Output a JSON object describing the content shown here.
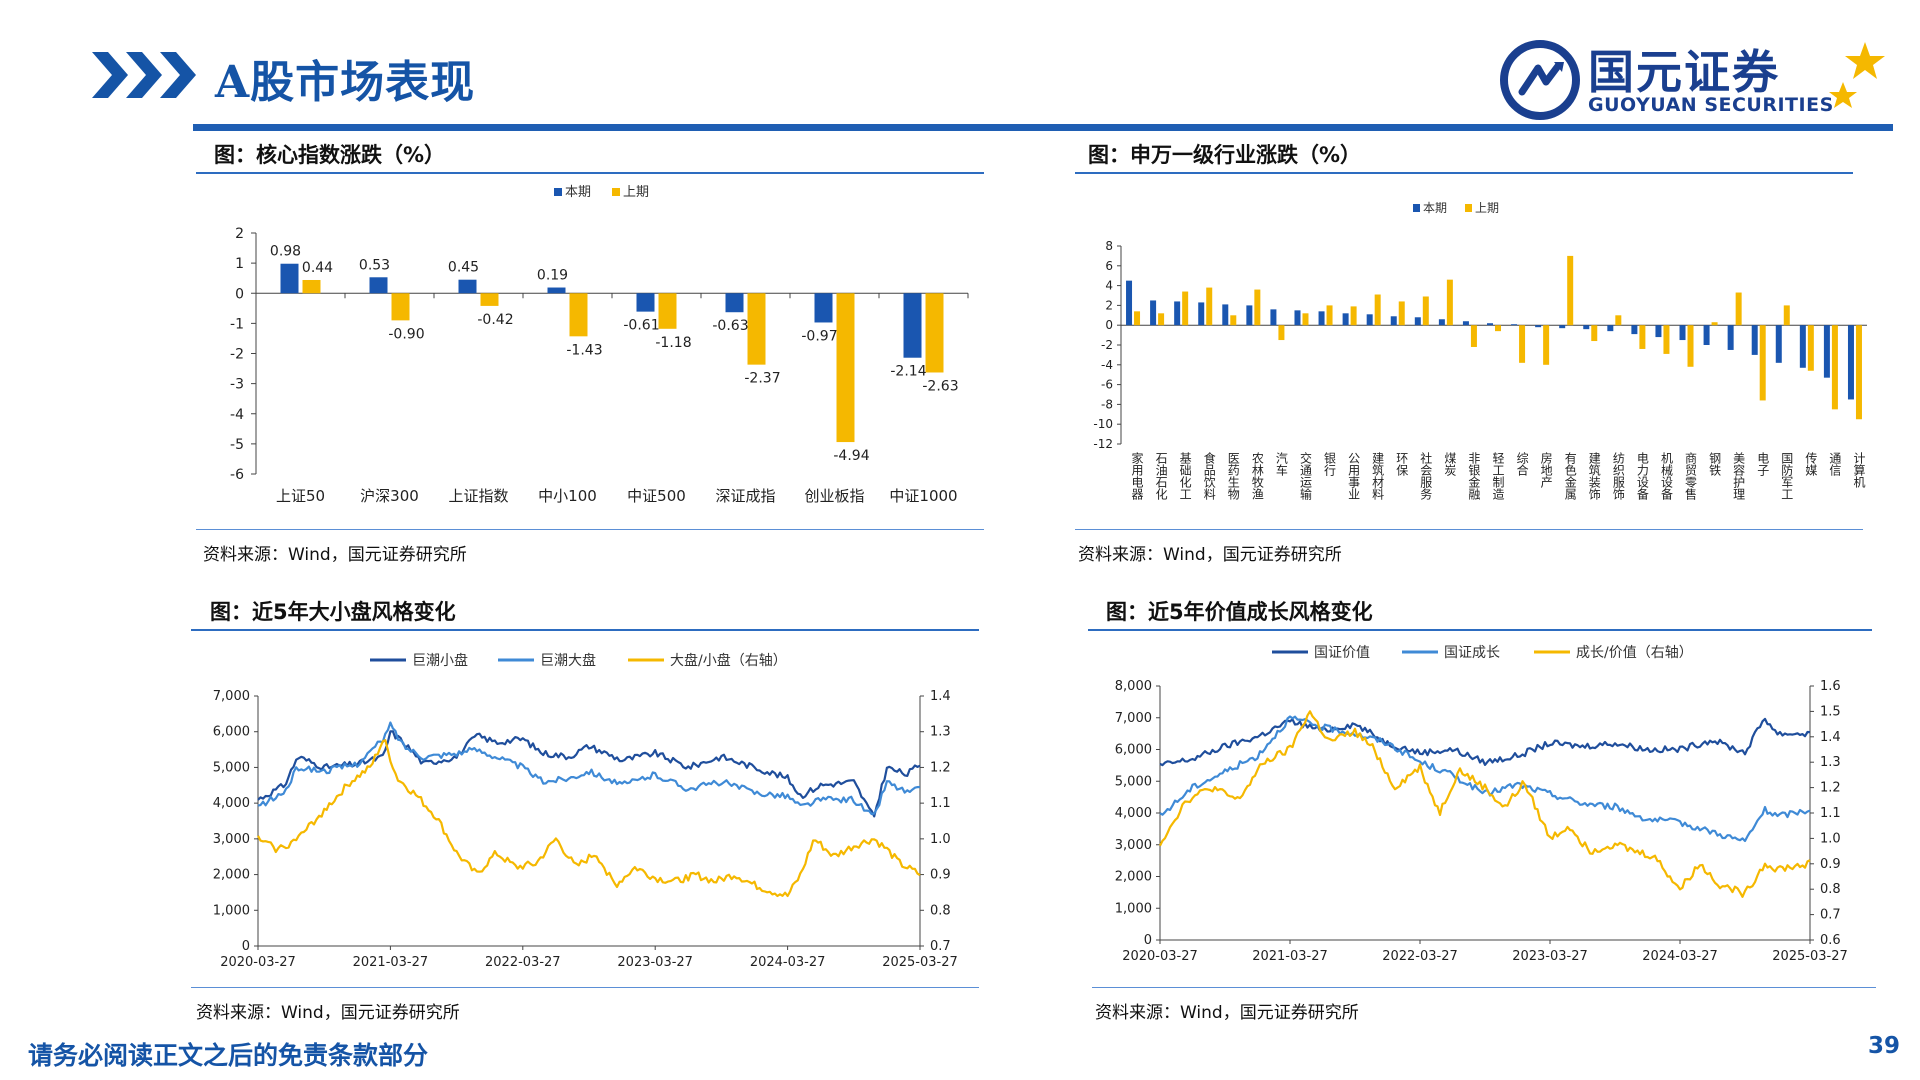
{
  "header": {
    "title": "A股市场表现",
    "logo_cn": "国元证券",
    "logo_en": "GUOYUAN SECURITIES",
    "accent": "#1f5eb3"
  },
  "panels": {
    "p1": {
      "title": "图：核心指数涨跌（%）",
      "source": "资料来源：Wind，国元证券研究所"
    },
    "p2": {
      "title": "图：申万一级行业涨跌（%）",
      "source": "资料来源：Wind，国元证券研究所"
    },
    "p3": {
      "title": "图：近5年大小盘风格变化",
      "source": "资料来源：Wind，国元证券研究所"
    },
    "p4": {
      "title": "图：近5年价值成长风格变化",
      "source": "资料来源：Wind，国元证券研究所"
    }
  },
  "footer": {
    "note": "请务必阅读正文之后的免责条款部分",
    "page": "39"
  },
  "colors": {
    "blue": "#1a56b0",
    "orange": "#f5b800",
    "dark_blue": "#1f4e9c",
    "mid_blue": "#3f8ad6"
  },
  "chart_data": [
    {
      "type": "bar",
      "id": "core-index",
      "categories": [
        "上证50",
        "沪深300",
        "上证指数",
        "中小100",
        "中证500",
        "深证成指",
        "创业板指",
        "中证1000"
      ],
      "series": [
        {
          "name": "本期",
          "values": [
            0.98,
            0.53,
            0.45,
            0.19,
            -0.61,
            -0.63,
            -0.97,
            -2.14
          ]
        },
        {
          "name": "上期",
          "values": [
            0.44,
            -0.9,
            -0.42,
            -1.43,
            -1.18,
            -2.37,
            -4.94,
            -2.63
          ]
        }
      ],
      "labels": [
        [
          "0.98",
          "0.53",
          "0.45",
          "0.19",
          "-0.61",
          "-0.63",
          "-0.97",
          "-2.14"
        ],
        [
          "0.44",
          "-0.90",
          "-0.42",
          "-1.43",
          "-1.18",
          "-2.37",
          "-4.94",
          "-2.63"
        ]
      ],
      "ylim": [
        -6,
        2
      ],
      "yticks": [
        "-6",
        "-5",
        "-4",
        "-3",
        "-2",
        "-1",
        "0",
        "1",
        "2"
      ],
      "legend": "top-center"
    },
    {
      "type": "bar",
      "id": "sw-industry",
      "categories": [
        "家用电器",
        "石油石化",
        "基础化工",
        "食品饮料",
        "医药生物",
        "农林牧渔",
        "汽车",
        "交通运输",
        "银行",
        "公用事业",
        "建筑材料",
        "环保",
        "社会服务",
        "煤炭",
        "非银金融",
        "轻工制造",
        "综合",
        "房地产",
        "有色金属",
        "建筑装饰",
        "纺织服饰",
        "电力设备",
        "机械设备",
        "商贸零售",
        "钢铁",
        "美容护理",
        "电子",
        "国防军工",
        "传媒",
        "通信",
        "计算机"
      ],
      "series": [
        {
          "name": "本期",
          "values": [
            4.5,
            2.5,
            2.4,
            2.3,
            2.1,
            2.0,
            1.6,
            1.5,
            1.4,
            1.2,
            1.1,
            0.9,
            0.8,
            0.6,
            0.4,
            0.2,
            0.1,
            -0.2,
            -0.3,
            -0.4,
            -0.6,
            -0.9,
            -1.2,
            -1.5,
            -2.0,
            -2.5,
            -3.0,
            -3.8,
            -4.3,
            -5.3,
            -7.5
          ]
        },
        {
          "name": "上期",
          "values": [
            1.4,
            1.2,
            3.4,
            3.8,
            1.0,
            3.6,
            -1.5,
            1.2,
            2.0,
            1.9,
            3.1,
            2.4,
            2.9,
            4.6,
            -2.2,
            -0.6,
            -3.8,
            -4.0,
            7.0,
            -1.6,
            1.0,
            -2.4,
            -2.9,
            -4.2,
            0.3,
            3.3,
            -7.6,
            2.0,
            -4.6,
            -8.5,
            -9.5
          ]
        }
      ],
      "ylim": [
        -12,
        8
      ],
      "yticks": [
        "-12",
        "-10",
        "-8",
        "-6",
        "-4",
        "-2",
        "0",
        "2",
        "4",
        "6",
        "8"
      ],
      "legend": "top-center"
    },
    {
      "type": "line",
      "id": "size-style",
      "x_range": [
        "2020-03-27",
        "2025-03-27"
      ],
      "x_ticks": [
        "2020-03-27",
        "2021-03-27",
        "2022-03-27",
        "2023-03-27",
        "2024-03-27",
        "2025-03-27"
      ],
      "y_left": [
        0,
        7000
      ],
      "y_left_ticks": [
        "0",
        "1,000",
        "2,000",
        "3,000",
        "4,000",
        "5,000",
        "6,000",
        "7,000"
      ],
      "y_right": [
        0.7,
        1.4
      ],
      "y_right_ticks": [
        "0.7",
        "0.8",
        "0.9",
        "1.0",
        "1.1",
        "1.2",
        "1.3",
        "1.4"
      ],
      "series": [
        {
          "name": "巨潮小盘",
          "axis": "left",
          "t": [
            0,
            0.04,
            0.06,
            0.1,
            0.15,
            0.19,
            0.2,
            0.22,
            0.25,
            0.3,
            0.33,
            0.36,
            0.4,
            0.43,
            0.47,
            0.5,
            0.55,
            0.6,
            0.65,
            0.7,
            0.75,
            0.8,
            0.82,
            0.85,
            0.9,
            0.93,
            0.95,
            0.98,
            1.0
          ],
          "v": [
            4100,
            4500,
            5300,
            5000,
            5100,
            5300,
            6000,
            5700,
            5100,
            5300,
            5900,
            5700,
            5800,
            5400,
            5300,
            5600,
            5200,
            5400,
            5000,
            5300,
            5000,
            4700,
            4200,
            4500,
            4600,
            3600,
            5000,
            4800,
            5100
          ]
        },
        {
          "name": "巨潮大盘",
          "axis": "left",
          "t": [
            0,
            0.04,
            0.06,
            0.1,
            0.15,
            0.19,
            0.2,
            0.22,
            0.25,
            0.3,
            0.33,
            0.36,
            0.4,
            0.43,
            0.47,
            0.5,
            0.55,
            0.6,
            0.65,
            0.7,
            0.75,
            0.8,
            0.82,
            0.85,
            0.9,
            0.93,
            0.95,
            0.98,
            1.0
          ],
          "v": [
            3900,
            4300,
            5000,
            4900,
            5100,
            5800,
            6200,
            5600,
            5300,
            5400,
            5500,
            5300,
            5000,
            4600,
            4700,
            4900,
            4500,
            4800,
            4400,
            4600,
            4300,
            4200,
            3900,
            4100,
            4100,
            3600,
            4600,
            4300,
            4400
          ]
        },
        {
          "name": "大盘/小盘（右轴）",
          "axis": "right",
          "t": [
            0,
            0.03,
            0.06,
            0.1,
            0.14,
            0.17,
            0.19,
            0.21,
            0.24,
            0.27,
            0.3,
            0.33,
            0.36,
            0.39,
            0.42,
            0.45,
            0.48,
            0.51,
            0.54,
            0.57,
            0.6,
            0.63,
            0.66,
            0.69,
            0.72,
            0.75,
            0.78,
            0.8,
            0.82,
            0.84,
            0.87,
            0.9,
            0.93,
            0.95,
            0.97,
            1.0
          ],
          "v": [
            1.0,
            0.97,
            1.0,
            1.08,
            1.16,
            1.2,
            1.28,
            1.17,
            1.12,
            1.06,
            0.96,
            0.9,
            0.96,
            0.92,
            0.93,
            1.0,
            0.92,
            0.96,
            0.87,
            0.92,
            0.89,
            0.88,
            0.9,
            0.88,
            0.9,
            0.87,
            0.85,
            0.84,
            0.9,
            1.0,
            0.95,
            0.98,
            1.0,
            0.97,
            0.93,
            0.9
          ]
        }
      ],
      "legend": "top-center"
    },
    {
      "type": "line",
      "id": "value-growth",
      "x_range": [
        "2020-03-27",
        "2025-03-27"
      ],
      "x_ticks": [
        "2020-03-27",
        "2021-03-27",
        "2022-03-27",
        "2023-03-27",
        "2024-03-27",
        "2025-03-27"
      ],
      "y_left": [
        0,
        8000
      ],
      "y_left_ticks": [
        "0",
        "1,000",
        "2,000",
        "3,000",
        "4,000",
        "5,000",
        "6,000",
        "7,000",
        "8,000"
      ],
      "y_right": [
        0.6,
        1.6
      ],
      "y_right_ticks": [
        "0.6",
        "0.7",
        "0.8",
        "0.9",
        "1.0",
        "1.1",
        "1.2",
        "1.3",
        "1.4",
        "1.5",
        "1.6"
      ],
      "series": [
        {
          "name": "国证价值",
          "axis": "left",
          "t": [
            0,
            0.05,
            0.1,
            0.15,
            0.2,
            0.25,
            0.3,
            0.35,
            0.4,
            0.45,
            0.5,
            0.55,
            0.6,
            0.65,
            0.7,
            0.75,
            0.8,
            0.85,
            0.9,
            0.93,
            0.95,
            1.0
          ],
          "v": [
            5500,
            5700,
            6100,
            6400,
            6900,
            6600,
            6800,
            6200,
            5900,
            6000,
            5600,
            5800,
            6200,
            6100,
            6200,
            6000,
            6000,
            6300,
            5900,
            7000,
            6500,
            6500
          ]
        },
        {
          "name": "国证成长",
          "axis": "left",
          "t": [
            0,
            0.05,
            0.1,
            0.15,
            0.2,
            0.25,
            0.3,
            0.35,
            0.4,
            0.45,
            0.5,
            0.55,
            0.6,
            0.65,
            0.7,
            0.75,
            0.8,
            0.85,
            0.9,
            0.93,
            0.95,
            1.0
          ],
          "v": [
            3900,
            4800,
            5300,
            5800,
            7000,
            6700,
            6500,
            6200,
            5600,
            5200,
            4600,
            4900,
            4600,
            4300,
            4200,
            3800,
            3700,
            3400,
            3100,
            4100,
            3900,
            4100
          ]
        },
        {
          "name": "成长/价值（右轴）",
          "axis": "right",
          "t": [
            0,
            0.04,
            0.08,
            0.12,
            0.16,
            0.2,
            0.23,
            0.26,
            0.3,
            0.33,
            0.36,
            0.4,
            0.43,
            0.46,
            0.5,
            0.53,
            0.56,
            0.6,
            0.63,
            0.66,
            0.7,
            0.73,
            0.76,
            0.8,
            0.83,
            0.86,
            0.9,
            0.93,
            0.95,
            1.0
          ],
          "v": [
            0.98,
            1.15,
            1.2,
            1.15,
            1.3,
            1.35,
            1.5,
            1.38,
            1.42,
            1.35,
            1.2,
            1.28,
            1.1,
            1.27,
            1.2,
            1.12,
            1.22,
            1.0,
            1.05,
            0.95,
            0.98,
            0.95,
            0.93,
            0.8,
            0.9,
            0.82,
            0.78,
            0.9,
            0.88,
            0.9
          ]
        }
      ],
      "legend": "top-center"
    }
  ]
}
